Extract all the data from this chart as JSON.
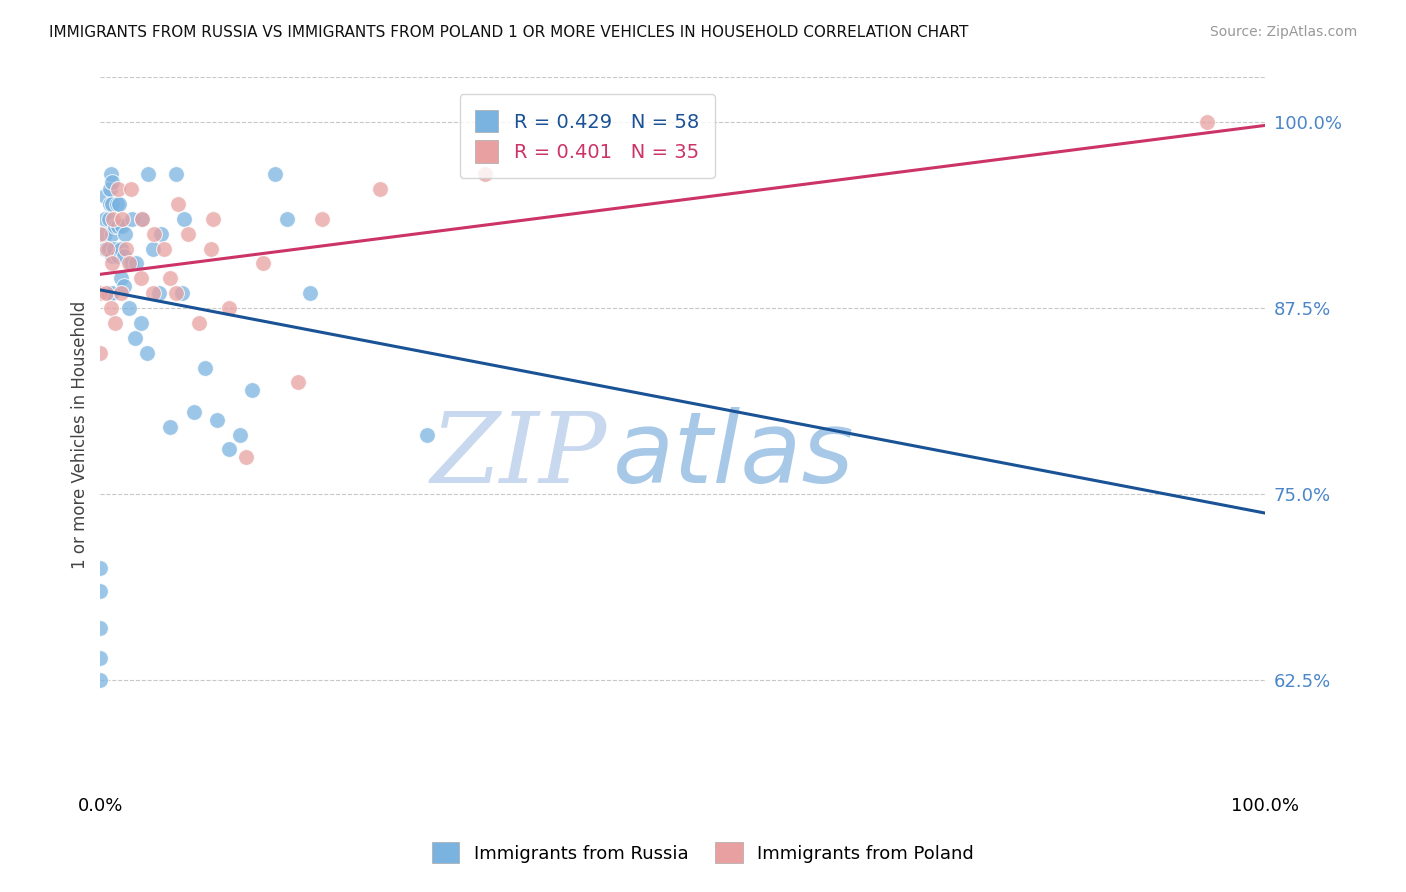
{
  "title": "IMMIGRANTS FROM RUSSIA VS IMMIGRANTS FROM POLAND 1 OR MORE VEHICLES IN HOUSEHOLD CORRELATION CHART",
  "source": "Source: ZipAtlas.com",
  "ylabel": "1 or more Vehicles in Household",
  "ytick_labels": [
    "100.0%",
    "87.5%",
    "75.0%",
    "62.5%"
  ],
  "ytick_values": [
    1.0,
    0.875,
    0.75,
    0.625
  ],
  "xlim": [
    0.0,
    1.0
  ],
  "ylim": [
    0.55,
    1.03
  ],
  "color_russia": "#7ab3e0",
  "color_poland": "#e8a0a0",
  "trendline_russia": "#1a5296",
  "trendline_poland": "#cc3366",
  "background_color": "#ffffff",
  "grid_color": "#c8c8c8",
  "watermark_zip": "ZIP",
  "watermark_atlas": "atlas",
  "watermark_color_zip": "#c8d8ee",
  "watermark_color_atlas": "#a8c8e8",
  "russia_x": [
    0.0,
    0.0,
    0.0,
    0.0,
    0.0,
    0.004,
    0.004,
    0.004,
    0.004,
    0.007,
    0.007,
    0.007,
    0.008,
    0.008,
    0.009,
    0.01,
    0.01,
    0.01,
    0.01,
    0.01,
    0.012,
    0.013,
    0.014,
    0.015,
    0.015,
    0.016,
    0.018,
    0.018,
    0.019,
    0.02,
    0.02,
    0.021,
    0.025,
    0.026,
    0.027,
    0.03,
    0.031,
    0.035,
    0.036,
    0.04,
    0.041,
    0.045,
    0.05,
    0.052,
    0.06,
    0.065,
    0.07,
    0.072,
    0.08,
    0.09,
    0.1,
    0.11,
    0.12,
    0.13,
    0.15,
    0.16,
    0.18,
    0.28
  ],
  "russia_y": [
    0.625,
    0.64,
    0.66,
    0.685,
    0.7,
    0.915,
    0.925,
    0.935,
    0.95,
    0.885,
    0.915,
    0.935,
    0.945,
    0.955,
    0.965,
    0.885,
    0.91,
    0.925,
    0.945,
    0.96,
    0.915,
    0.93,
    0.945,
    0.91,
    0.93,
    0.945,
    0.895,
    0.915,
    0.93,
    0.89,
    0.91,
    0.925,
    0.875,
    0.905,
    0.935,
    0.855,
    0.905,
    0.865,
    0.935,
    0.845,
    0.965,
    0.915,
    0.885,
    0.925,
    0.795,
    0.965,
    0.885,
    0.935,
    0.805,
    0.835,
    0.8,
    0.78,
    0.79,
    0.82,
    0.965,
    0.935,
    0.885,
    0.79
  ],
  "poland_x": [
    0.0,
    0.0,
    0.0,
    0.005,
    0.006,
    0.009,
    0.01,
    0.011,
    0.013,
    0.015,
    0.018,
    0.019,
    0.022,
    0.025,
    0.026,
    0.035,
    0.036,
    0.045,
    0.046,
    0.055,
    0.06,
    0.065,
    0.067,
    0.075,
    0.085,
    0.095,
    0.097,
    0.11,
    0.125,
    0.14,
    0.17,
    0.19,
    0.24,
    0.33,
    0.95
  ],
  "poland_y": [
    0.845,
    0.885,
    0.925,
    0.885,
    0.915,
    0.875,
    0.905,
    0.935,
    0.865,
    0.955,
    0.885,
    0.935,
    0.915,
    0.905,
    0.955,
    0.895,
    0.935,
    0.885,
    0.925,
    0.915,
    0.895,
    0.885,
    0.945,
    0.925,
    0.865,
    0.915,
    0.935,
    0.875,
    0.775,
    0.905,
    0.825,
    0.935,
    0.955,
    0.965,
    1.0
  ]
}
